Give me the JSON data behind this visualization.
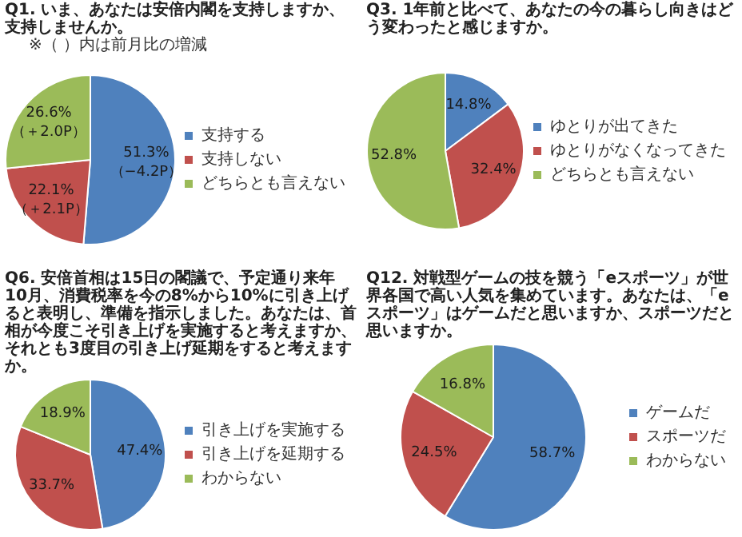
{
  "chart_data": [
    {
      "type": "pie",
      "title": "Q1. いま、あなたは安倍内閣を支持しますか、支持しませんか。",
      "subtitle": "※（ ）内は前月比の増減",
      "categories": [
        "支持する",
        "支持しない",
        "どちらとも言えない"
      ],
      "values": [
        51.3,
        22.1,
        26.6
      ],
      "colors": [
        "#4f81bd",
        "#c0504d",
        "#9bbb59"
      ],
      "value_labels": [
        "51.3%\n（−4.2P）",
        "22.1%\n（＋2.1P）",
        "26.6%\n（＋2.0P）"
      ],
      "legend": "right"
    },
    {
      "type": "pie",
      "title": "Q3. 1年前と比べて、あなたの今の暮らし向きはどう変わったと感じますか。",
      "categories": [
        "ゆとりが出てきた",
        "ゆとりがなくなってきた",
        "どちらとも言えない"
      ],
      "values": [
        14.8,
        32.4,
        52.8
      ],
      "colors": [
        "#4f81bd",
        "#c0504d",
        "#9bbb59"
      ],
      "value_labels": [
        "14.8%",
        "32.4%",
        "52.8%"
      ],
      "legend": "right"
    },
    {
      "type": "pie",
      "title": "Q6. 安倍首相は15日の閣議で、予定通り来年10月、消費税率を今の8%から10%に引き上げると表明し、準備を指示しました。あなたは、首相が今度こそ引き上げを実施すると考えますか、それとも3度目の引き上げ延期をすると考えますか。",
      "categories": [
        "引き上げを実施する",
        "引き上げを延期する",
        "わからない"
      ],
      "values": [
        47.4,
        33.7,
        18.9
      ],
      "colors": [
        "#4f81bd",
        "#c0504d",
        "#9bbb59"
      ],
      "value_labels": [
        "47.4%",
        "33.7%",
        "18.9%"
      ],
      "legend": "right"
    },
    {
      "type": "pie",
      "title": "Q12. 対戦型ゲームの技を競う「eスポーツ」が世界各国で高い人気を集めています。あなたは、「eスポーツ」はゲームだと思いますか、スポーツだと思いますか。",
      "categories": [
        "ゲームだ",
        "スポーツだ",
        "わからない"
      ],
      "values": [
        58.7,
        24.5,
        16.8
      ],
      "colors": [
        "#4f81bd",
        "#c0504d",
        "#9bbb59"
      ],
      "value_labels": [
        "58.7%",
        "24.5%",
        "16.8%"
      ],
      "legend": "right"
    }
  ]
}
